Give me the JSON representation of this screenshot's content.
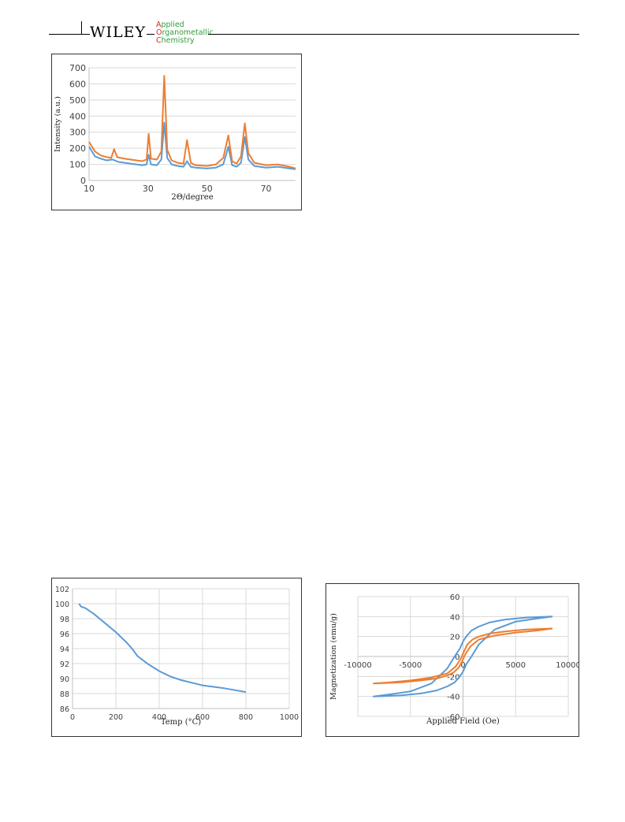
{
  "header": {
    "logo": "WILEY",
    "journal_line1_cap": "A",
    "journal_line1_rest": "pplied",
    "journal_line2_cap": "O",
    "journal_line2_rest": "rganometallic",
    "journal_line3_cap": "C",
    "journal_line3_rest": "hemistry"
  },
  "chart_data": [
    {
      "type": "line",
      "xlabel": "2Θ/degree",
      "ylabel": "Intensity (a.u.)",
      "xlim": [
        10,
        80
      ],
      "ylim": [
        0,
        700
      ],
      "xticks": [
        10,
        30,
        50,
        70
      ],
      "yticks": [
        0,
        100,
        200,
        300,
        400,
        500,
        600,
        700
      ],
      "grid": "horizontal",
      "series": [
        {
          "color": "#5b9bd5",
          "x": [
            10,
            12,
            14,
            16,
            18,
            20,
            22,
            24,
            26,
            28,
            29.5,
            30.2,
            31,
            33,
            34.5,
            35.5,
            36.5,
            38,
            40,
            42,
            43.2,
            44.5,
            46,
            50,
            53,
            55.5,
            57.2,
            58.5,
            60,
            61.5,
            62.8,
            64,
            66,
            70,
            74,
            78,
            80
          ],
          "values": [
            210,
            150,
            135,
            125,
            130,
            115,
            110,
            105,
            100,
            95,
            100,
            160,
            100,
            95,
            130,
            360,
            140,
            100,
            90,
            85,
            120,
            85,
            80,
            75,
            80,
            100,
            210,
            95,
            85,
            110,
            270,
            130,
            90,
            80,
            85,
            75,
            70
          ]
        },
        {
          "color": "#ed7d31",
          "x": [
            10,
            12,
            14,
            16,
            17.5,
            18.5,
            19.5,
            22,
            24,
            26,
            28,
            29.5,
            30.2,
            31,
            33,
            34.5,
            35.5,
            36.5,
            38,
            40,
            42,
            43.2,
            44.5,
            46,
            50,
            53,
            55.5,
            57.2,
            58.5,
            60,
            61.5,
            62.8,
            64,
            66,
            70,
            74,
            78,
            80
          ],
          "values": [
            240,
            180,
            155,
            145,
            140,
            195,
            145,
            135,
            130,
            125,
            120,
            130,
            290,
            135,
            130,
            180,
            650,
            190,
            125,
            110,
            105,
            250,
            110,
            95,
            90,
            100,
            140,
            280,
            120,
            105,
            150,
            355,
            170,
            110,
            95,
            100,
            85,
            75
          ]
        }
      ]
    },
    {
      "type": "line",
      "xlabel": "Temp (°C)",
      "ylabel": "",
      "xlim": [
        0,
        1000
      ],
      "ylim": [
        86,
        102
      ],
      "xticks": [
        0,
        200,
        400,
        600,
        800,
        1000
      ],
      "yticks": [
        86,
        88,
        90,
        92,
        94,
        96,
        98,
        100,
        102
      ],
      "grid": "both",
      "series": [
        {
          "color": "#5b9bd5",
          "x": [
            30,
            40,
            60,
            100,
            150,
            200,
            250,
            280,
            300,
            350,
            400,
            450,
            500,
            600,
            700,
            800
          ],
          "values": [
            100,
            99.6,
            99.4,
            98.6,
            97.4,
            96.2,
            94.8,
            93.8,
            93.0,
            91.9,
            91.0,
            90.3,
            89.8,
            89.1,
            88.7,
            88.2
          ]
        }
      ]
    },
    {
      "type": "line",
      "xlabel": "Applied Field (Oe)",
      "ylabel": "Magnetization (emu/g)",
      "xlim": [
        -10000,
        10000
      ],
      "ylim": [
        -60,
        60
      ],
      "xticks": [
        -10000,
        -5000,
        0,
        5000,
        10000
      ],
      "yticks": [
        -60,
        -40,
        -20,
        0,
        20,
        40,
        60
      ],
      "grid": "both",
      "series": [
        {
          "color": "#5b9bd5",
          "x": [
            8500,
            6000,
            4000,
            2500,
            1500,
            800,
            300,
            0,
            -300,
            -800,
            -1500,
            -3000,
            -5000,
            -7000,
            -8500,
            -6000,
            -4000,
            -2500,
            -1500,
            -800,
            -300,
            0,
            300,
            800,
            1500,
            3000,
            5000,
            7000,
            8500
          ],
          "values": [
            40,
            39,
            37,
            34,
            30,
            26,
            20,
            15,
            8,
            0,
            -12,
            -27,
            -35,
            -38,
            -40,
            -39,
            -37,
            -34,
            -30,
            -26,
            -20,
            -15,
            -8,
            0,
            12,
            27,
            35,
            38,
            40
          ]
        },
        {
          "color": "#ed7d31",
          "x": [
            8500,
            6000,
            4000,
            2500,
            1500,
            900,
            400,
            100,
            -200,
            -700,
            -1500,
            -3000,
            -5000,
            -7000,
            -8500,
            -6000,
            -4000,
            -2500,
            -1500,
            -900,
            -400,
            -100,
            200,
            700,
            1500,
            3000,
            5000,
            7000,
            8500
          ],
          "values": [
            28,
            27,
            25,
            23,
            20,
            17,
            12,
            5,
            -2,
            -10,
            -17,
            -21,
            -24,
            -26,
            -27,
            -26,
            -24,
            -22,
            -19,
            -16,
            -11,
            -5,
            2,
            10,
            17,
            21,
            24,
            26,
            28
          ]
        }
      ]
    }
  ]
}
